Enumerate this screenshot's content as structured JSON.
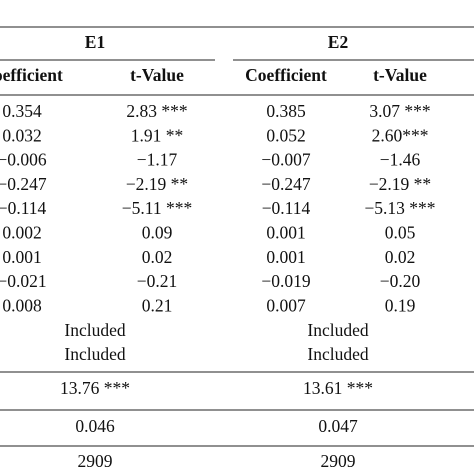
{
  "table": {
    "groups": [
      "E1",
      "E2"
    ],
    "columns": [
      "Coefficient",
      "t-Value",
      "Coefficient",
      "t-Value"
    ],
    "rows": [
      [
        "0.354",
        "2.83 ***",
        "0.385",
        "3.07 ***"
      ],
      [
        "0.032",
        "1.91 **",
        "0.052",
        "2.60***"
      ],
      [
        "−0.006",
        "−1.17",
        "−0.007",
        "−1.46"
      ],
      [
        "−0.247",
        "−2.19 **",
        "−0.247",
        "−2.19 **"
      ],
      [
        "−0.114",
        "−5.11 ***",
        "−0.114",
        "−5.13 ***"
      ],
      [
        "0.002",
        "0.09",
        "0.001",
        "0.05"
      ],
      [
        "0.001",
        "0.02",
        "0.001",
        "0.02"
      ],
      [
        "−0.021",
        "−0.21",
        "−0.019",
        "−0.20"
      ],
      [
        "0.008",
        "0.21",
        "0.007",
        "0.19"
      ]
    ],
    "included_rows": [
      [
        "Included",
        "Included"
      ],
      [
        "Included",
        "Included"
      ]
    ],
    "summary_rows": [
      [
        "13.76 ***",
        "13.61 ***"
      ],
      [
        "0.046",
        "0.047"
      ],
      [
        "2909",
        "2909"
      ]
    ]
  }
}
